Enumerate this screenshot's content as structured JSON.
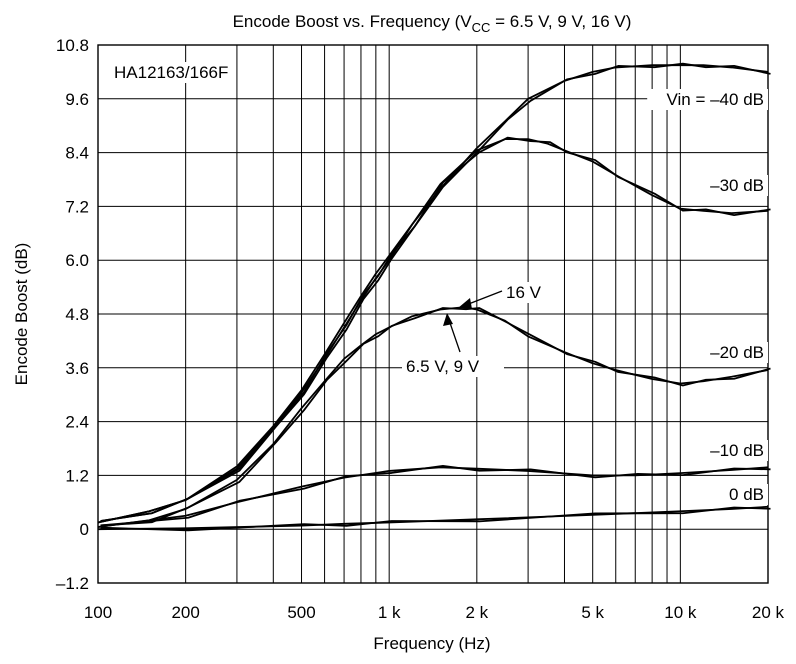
{
  "chart_data": {
    "type": "line",
    "title_prefix": "Encode Boost vs. Frequency (V",
    "title_sub": "CC",
    "title_suffix": " = 6.5 V, 9 V, 16 V)",
    "xlabel": "Frequency  (Hz)",
    "ylabel": "Encode Boost  (dB)",
    "x_scale": "log",
    "xlim": [
      100,
      20000
    ],
    "ylim": [
      -1.2,
      10.8
    ],
    "grid": true,
    "x_ticks": [
      {
        "value": 100,
        "label": "100"
      },
      {
        "value": 200,
        "label": "200"
      },
      {
        "value": 500,
        "label": "500"
      },
      {
        "value": 1000,
        "label": "1 k"
      },
      {
        "value": 2000,
        "label": "2 k"
      },
      {
        "value": 5000,
        "label": "5 k"
      },
      {
        "value": 10000,
        "label": "10 k"
      },
      {
        "value": 20000,
        "label": "20 k"
      }
    ],
    "x_grid": [
      200,
      300,
      400,
      500,
      600,
      700,
      800,
      900,
      1000,
      2000,
      3000,
      4000,
      5000,
      6000,
      7000,
      8000,
      9000,
      10000
    ],
    "y_ticks": [
      {
        "value": 10.8,
        "label": "10.8"
      },
      {
        "value": 9.6,
        "label": "9.6"
      },
      {
        "value": 8.4,
        "label": "8.4"
      },
      {
        "value": 7.2,
        "label": "7.2"
      },
      {
        "value": 6.0,
        "label": "6.0"
      },
      {
        "value": 4.8,
        "label": "4.8"
      },
      {
        "value": 3.6,
        "label": "3.6"
      },
      {
        "value": 2.4,
        "label": "2.4"
      },
      {
        "value": 1.2,
        "label": "1.2"
      },
      {
        "value": 0,
        "label": "0"
      },
      {
        "value": -1.2,
        "label": "–1.2"
      }
    ],
    "series": [
      {
        "name": "Vin = –40 dB",
        "x": [
          100,
          150,
          200,
          300,
          400,
          500,
          600,
          700,
          800,
          900,
          1000,
          1200,
          1500,
          2000,
          2500,
          3000,
          4000,
          5000,
          6000,
          8000,
          10000,
          12000,
          15000,
          20000
        ],
        "values": [
          0.15,
          0.4,
          0.65,
          1.4,
          2.3,
          3.1,
          3.9,
          4.6,
          5.2,
          5.7,
          6.1,
          6.8,
          7.6,
          8.5,
          9.1,
          9.6,
          10.0,
          10.2,
          10.3,
          10.35,
          10.35,
          10.35,
          10.3,
          10.2
        ]
      },
      {
        "name": "–30 dB",
        "x": [
          100,
          150,
          200,
          300,
          400,
          500,
          600,
          700,
          800,
          900,
          1000,
          1200,
          1500,
          2000,
          2500,
          3000,
          3500,
          4000,
          5000,
          6000,
          8000,
          10000,
          12000,
          15000,
          20000
        ],
        "values": [
          0.15,
          0.4,
          0.65,
          1.35,
          2.25,
          3.05,
          3.8,
          4.5,
          5.1,
          5.6,
          6.0,
          6.8,
          7.7,
          8.45,
          8.7,
          8.7,
          8.6,
          8.45,
          8.2,
          7.9,
          7.45,
          7.15,
          7.1,
          7.05,
          7.1
        ]
      },
      {
        "name": "–20 dB",
        "x": [
          100,
          150,
          200,
          300,
          400,
          500,
          600,
          700,
          800,
          900,
          1000,
          1200,
          1500,
          1800,
          2000,
          2500,
          3000,
          4000,
          5000,
          6000,
          8000,
          10000,
          12000,
          15000,
          20000
        ],
        "values": [
          0.05,
          0.2,
          0.45,
          1.1,
          1.9,
          2.7,
          3.3,
          3.8,
          4.1,
          4.35,
          4.5,
          4.75,
          4.9,
          4.95,
          4.9,
          4.65,
          4.3,
          3.95,
          3.7,
          3.55,
          3.35,
          3.25,
          3.3,
          3.4,
          3.55
        ]
      },
      {
        "name": "–10 dB",
        "x": [
          100,
          200,
          300,
          500,
          700,
          1000,
          1500,
          2000,
          3000,
          5000,
          7000,
          10000,
          15000,
          20000
        ],
        "values": [
          0.05,
          0.3,
          0.6,
          0.95,
          1.15,
          1.3,
          1.38,
          1.35,
          1.3,
          1.2,
          1.2,
          1.25,
          1.32,
          1.38
        ]
      },
      {
        "name": "0 dB",
        "x": [
          100,
          200,
          500,
          700,
          1000,
          2000,
          5000,
          10000,
          15000,
          20000
        ],
        "values": [
          0.0,
          0.02,
          0.08,
          0.12,
          0.15,
          0.22,
          0.32,
          0.4,
          0.45,
          0.5
        ]
      }
    ],
    "annotations": {
      "part_number": "HA12163/166F",
      "label_vin40": "Vin = –40 dB",
      "label_30": "–30 dB",
      "label_20": "–20 dB",
      "label_10": "–10 dB",
      "label_0": "0 dB",
      "label_16v": "16 V",
      "label_65_9v": "6.5 V, 9 V"
    }
  }
}
